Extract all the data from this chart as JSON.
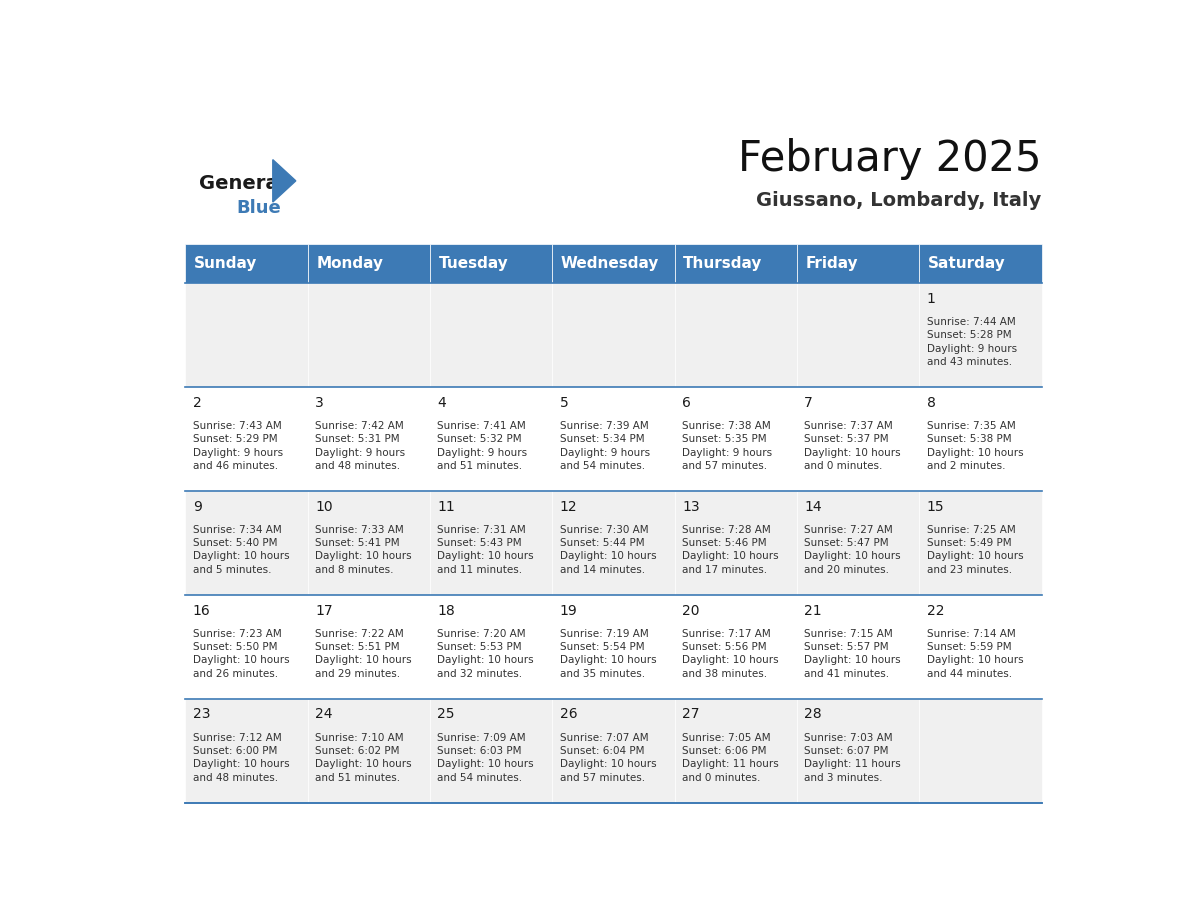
{
  "title": "February 2025",
  "subtitle": "Giussano, Lombardy, Italy",
  "header_color": "#3d7ab5",
  "header_text_color": "#ffffff",
  "bg_color_odd": "#f0f0f0",
  "bg_color_even": "#ffffff",
  "day_headers": [
    "Sunday",
    "Monday",
    "Tuesday",
    "Wednesday",
    "Thursday",
    "Friday",
    "Saturday"
  ],
  "weeks": [
    [
      {
        "day": "",
        "info": ""
      },
      {
        "day": "",
        "info": ""
      },
      {
        "day": "",
        "info": ""
      },
      {
        "day": "",
        "info": ""
      },
      {
        "day": "",
        "info": ""
      },
      {
        "day": "",
        "info": ""
      },
      {
        "day": "1",
        "info": "Sunrise: 7:44 AM\nSunset: 5:28 PM\nDaylight: 9 hours\nand 43 minutes."
      }
    ],
    [
      {
        "day": "2",
        "info": "Sunrise: 7:43 AM\nSunset: 5:29 PM\nDaylight: 9 hours\nand 46 minutes."
      },
      {
        "day": "3",
        "info": "Sunrise: 7:42 AM\nSunset: 5:31 PM\nDaylight: 9 hours\nand 48 minutes."
      },
      {
        "day": "4",
        "info": "Sunrise: 7:41 AM\nSunset: 5:32 PM\nDaylight: 9 hours\nand 51 minutes."
      },
      {
        "day": "5",
        "info": "Sunrise: 7:39 AM\nSunset: 5:34 PM\nDaylight: 9 hours\nand 54 minutes."
      },
      {
        "day": "6",
        "info": "Sunrise: 7:38 AM\nSunset: 5:35 PM\nDaylight: 9 hours\nand 57 minutes."
      },
      {
        "day": "7",
        "info": "Sunrise: 7:37 AM\nSunset: 5:37 PM\nDaylight: 10 hours\nand 0 minutes."
      },
      {
        "day": "8",
        "info": "Sunrise: 7:35 AM\nSunset: 5:38 PM\nDaylight: 10 hours\nand 2 minutes."
      }
    ],
    [
      {
        "day": "9",
        "info": "Sunrise: 7:34 AM\nSunset: 5:40 PM\nDaylight: 10 hours\nand 5 minutes."
      },
      {
        "day": "10",
        "info": "Sunrise: 7:33 AM\nSunset: 5:41 PM\nDaylight: 10 hours\nand 8 minutes."
      },
      {
        "day": "11",
        "info": "Sunrise: 7:31 AM\nSunset: 5:43 PM\nDaylight: 10 hours\nand 11 minutes."
      },
      {
        "day": "12",
        "info": "Sunrise: 7:30 AM\nSunset: 5:44 PM\nDaylight: 10 hours\nand 14 minutes."
      },
      {
        "day": "13",
        "info": "Sunrise: 7:28 AM\nSunset: 5:46 PM\nDaylight: 10 hours\nand 17 minutes."
      },
      {
        "day": "14",
        "info": "Sunrise: 7:27 AM\nSunset: 5:47 PM\nDaylight: 10 hours\nand 20 minutes."
      },
      {
        "day": "15",
        "info": "Sunrise: 7:25 AM\nSunset: 5:49 PM\nDaylight: 10 hours\nand 23 minutes."
      }
    ],
    [
      {
        "day": "16",
        "info": "Sunrise: 7:23 AM\nSunset: 5:50 PM\nDaylight: 10 hours\nand 26 minutes."
      },
      {
        "day": "17",
        "info": "Sunrise: 7:22 AM\nSunset: 5:51 PM\nDaylight: 10 hours\nand 29 minutes."
      },
      {
        "day": "18",
        "info": "Sunrise: 7:20 AM\nSunset: 5:53 PM\nDaylight: 10 hours\nand 32 minutes."
      },
      {
        "day": "19",
        "info": "Sunrise: 7:19 AM\nSunset: 5:54 PM\nDaylight: 10 hours\nand 35 minutes."
      },
      {
        "day": "20",
        "info": "Sunrise: 7:17 AM\nSunset: 5:56 PM\nDaylight: 10 hours\nand 38 minutes."
      },
      {
        "day": "21",
        "info": "Sunrise: 7:15 AM\nSunset: 5:57 PM\nDaylight: 10 hours\nand 41 minutes."
      },
      {
        "day": "22",
        "info": "Sunrise: 7:14 AM\nSunset: 5:59 PM\nDaylight: 10 hours\nand 44 minutes."
      }
    ],
    [
      {
        "day": "23",
        "info": "Sunrise: 7:12 AM\nSunset: 6:00 PM\nDaylight: 10 hours\nand 48 minutes."
      },
      {
        "day": "24",
        "info": "Sunrise: 7:10 AM\nSunset: 6:02 PM\nDaylight: 10 hours\nand 51 minutes."
      },
      {
        "day": "25",
        "info": "Sunrise: 7:09 AM\nSunset: 6:03 PM\nDaylight: 10 hours\nand 54 minutes."
      },
      {
        "day": "26",
        "info": "Sunrise: 7:07 AM\nSunset: 6:04 PM\nDaylight: 10 hours\nand 57 minutes."
      },
      {
        "day": "27",
        "info": "Sunrise: 7:05 AM\nSunset: 6:06 PM\nDaylight: 11 hours\nand 0 minutes."
      },
      {
        "day": "28",
        "info": "Sunrise: 7:03 AM\nSunset: 6:07 PM\nDaylight: 11 hours\nand 3 minutes."
      },
      {
        "day": "",
        "info": ""
      }
    ]
  ],
  "logo_general_color": "#1a1a1a",
  "logo_blue_color": "#3d7ab5",
  "line_color": "#3d7ab5",
  "cell_text_color": "#333333",
  "day_num_color": "#1a1a1a",
  "info_font_size": 7.5,
  "day_num_font_size": 10,
  "header_font_size": 11
}
